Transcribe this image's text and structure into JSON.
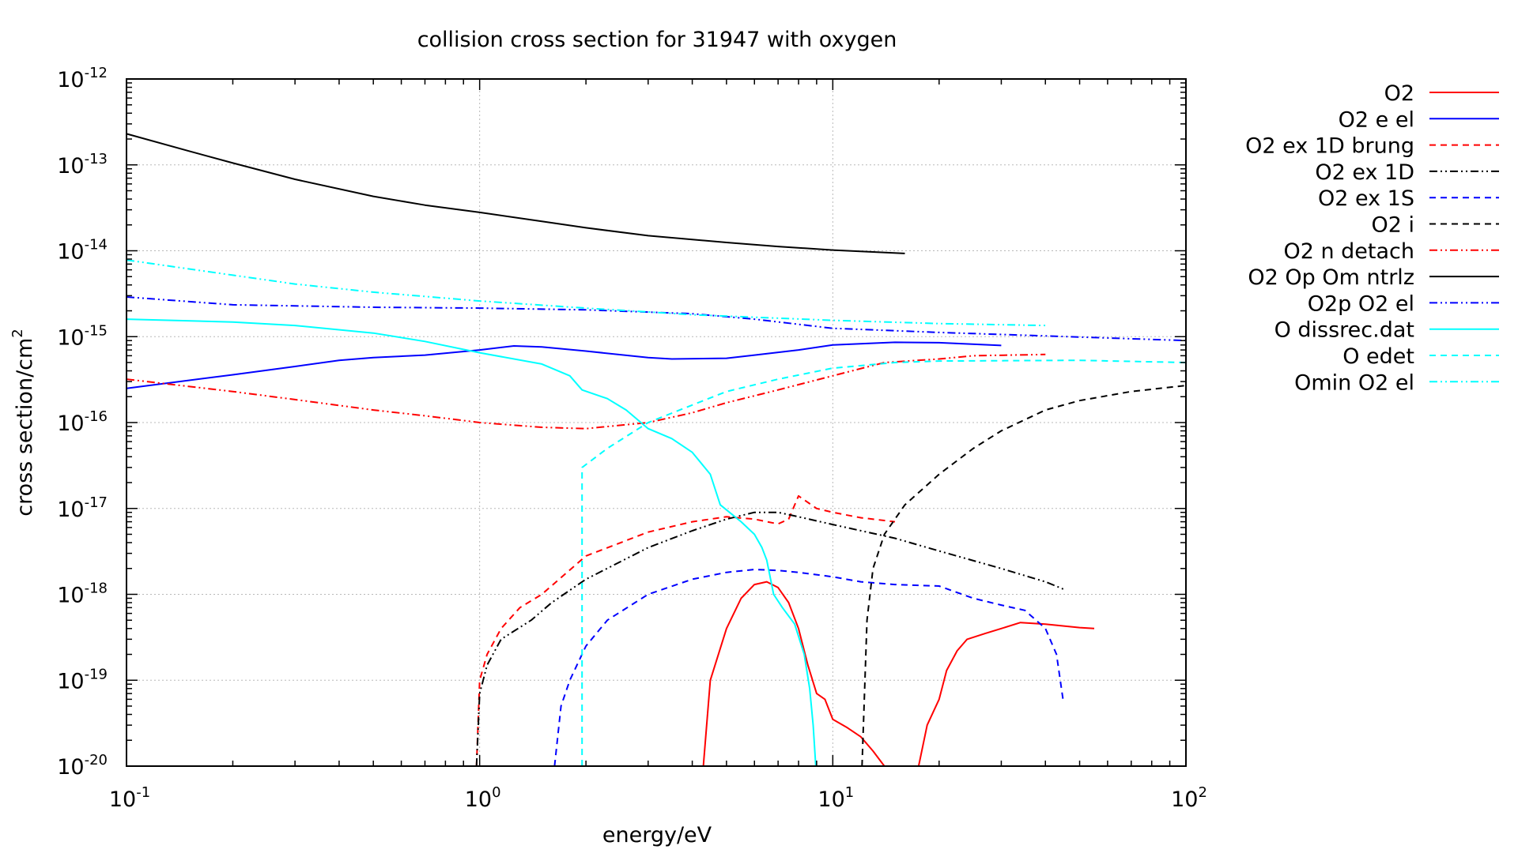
{
  "chart_data": {
    "type": "line",
    "title": "collision cross section for 31947 with oxygen",
    "xlabel": "energy/eV",
    "ylabel_base": "cross section/cm",
    "ylabel_exp": "2",
    "xscale": "log",
    "yscale": "log",
    "xlim": [
      0.1,
      100
    ],
    "ylim": [
      1e-20,
      1e-12
    ],
    "grid": true,
    "legend_position": "outside-right",
    "x_ticks": [
      {
        "base": "10",
        "exp": "-1",
        "value": 0.1
      },
      {
        "base": "10",
        "exp": "0",
        "value": 1
      },
      {
        "base": "10",
        "exp": "1",
        "value": 10
      },
      {
        "base": "10",
        "exp": "2",
        "value": 100
      }
    ],
    "y_ticks": [
      {
        "base": "10",
        "exp": "-12",
        "value": 1e-12
      },
      {
        "base": "10",
        "exp": "-13",
        "value": 1e-13
      },
      {
        "base": "10",
        "exp": "-14",
        "value": 1e-14
      },
      {
        "base": "10",
        "exp": "-15",
        "value": 1e-15
      },
      {
        "base": "10",
        "exp": "-16",
        "value": 1e-16
      },
      {
        "base": "10",
        "exp": "-17",
        "value": 1e-17
      },
      {
        "base": "10",
        "exp": "-18",
        "value": 1e-18
      },
      {
        "base": "10",
        "exp": "-19",
        "value": 1e-19
      },
      {
        "base": "10",
        "exp": "-20",
        "value": 1e-20
      }
    ],
    "series": [
      {
        "name": "O2",
        "color": "#ff0000",
        "dash": "solid",
        "segments": [
          [
            [
              4.3,
              1e-20
            ],
            [
              4.5,
              1e-19
            ],
            [
              5.0,
              4e-19
            ],
            [
              5.5,
              9e-19
            ],
            [
              6.0,
              1.3e-18
            ],
            [
              6.5,
              1.4e-18
            ],
            [
              7.0,
              1.2e-18
            ],
            [
              7.5,
              8e-19
            ],
            [
              8.0,
              4e-19
            ],
            [
              8.5,
              1.5e-19
            ],
            [
              9.0,
              7e-20
            ],
            [
              9.5,
              6e-20
            ],
            [
              10.0,
              3.5e-20
            ],
            [
              11.0,
              2.8e-20
            ],
            [
              12.0,
              2.2e-20
            ],
            [
              13.0,
              1.5e-20
            ],
            [
              14.0,
              1e-20
            ]
          ],
          [
            [
              17.5,
              1e-20
            ],
            [
              18.5,
              3e-20
            ],
            [
              20.0,
              6e-20
            ],
            [
              21.0,
              1.3e-19
            ],
            [
              22.5,
              2.2e-19
            ],
            [
              24.0,
              3e-19
            ],
            [
              27.0,
              3.5e-19
            ],
            [
              30.0,
              4e-19
            ],
            [
              34.0,
              4.7e-19
            ],
            [
              40.0,
              4.5e-19
            ],
            [
              50.0,
              4.1e-19
            ],
            [
              55.0,
              4e-19
            ]
          ]
        ]
      },
      {
        "name": "O2 e el",
        "color": "#0000ff",
        "dash": "solid",
        "segments": [
          [
            [
              0.1,
              2.5e-16
            ],
            [
              0.2,
              3.6e-16
            ],
            [
              0.3,
              4.5e-16
            ],
            [
              0.4,
              5.3e-16
            ],
            [
              0.5,
              5.7e-16
            ],
            [
              0.7,
              6.1e-16
            ],
            [
              1.0,
              7e-16
            ],
            [
              1.25,
              7.8e-16
            ],
            [
              1.5,
              7.6e-16
            ],
            [
              2.0,
              6.8e-16
            ],
            [
              3.0,
              5.7e-16
            ],
            [
              3.5,
              5.5e-16
            ],
            [
              5.0,
              5.6e-16
            ],
            [
              6.0,
              6.1e-16
            ],
            [
              8.0,
              7e-16
            ],
            [
              10.0,
              8e-16
            ],
            [
              15.0,
              8.6e-16
            ],
            [
              20.0,
              8.5e-16
            ],
            [
              30.0,
              7.9e-16
            ]
          ]
        ]
      },
      {
        "name": "O2 ex 1D brung",
        "color": "#ff0000",
        "dash": "8,6",
        "segments": [
          [
            [
              0.98,
              1e-20
            ],
            [
              1.0,
              1e-19
            ],
            [
              1.05,
              2e-19
            ],
            [
              1.15,
              4e-19
            ],
            [
              1.3,
              7e-19
            ],
            [
              1.5,
              1e-18
            ],
            [
              2.0,
              2.8e-18
            ],
            [
              3.0,
              5.3e-18
            ],
            [
              4.0,
              7e-18
            ],
            [
              5.0,
              8e-18
            ],
            [
              6.0,
              7.5e-18
            ],
            [
              7.0,
              6.6e-18
            ],
            [
              7.5,
              7.5e-18
            ],
            [
              8.0,
              1.4e-17
            ],
            [
              9.0,
              1e-17
            ],
            [
              10.0,
              9e-18
            ],
            [
              12.0,
              7.8e-18
            ],
            [
              15.0,
              7e-18
            ]
          ]
        ]
      },
      {
        "name": "O2 ex 1D",
        "color": "#000000",
        "dash": "10,4,2,4,2,4",
        "segments": [
          [
            [
              0.98,
              1e-20
            ],
            [
              1.0,
              7e-20
            ],
            [
              1.05,
              1.5e-19
            ],
            [
              1.15,
              3e-19
            ],
            [
              1.4,
              5e-19
            ],
            [
              1.6,
              8e-19
            ],
            [
              2.0,
              1.5e-18
            ],
            [
              3.0,
              3.5e-18
            ],
            [
              4.0,
              5.5e-18
            ],
            [
              5.0,
              7.5e-18
            ],
            [
              6.0,
              9e-18
            ],
            [
              7.0,
              9e-18
            ],
            [
              8.0,
              8e-18
            ],
            [
              10.0,
              6.5e-18
            ],
            [
              15.0,
              4.5e-18
            ],
            [
              20.0,
              3.2e-18
            ],
            [
              30.0,
              2e-18
            ],
            [
              40.0,
              1.4e-18
            ],
            [
              45.0,
              1.15e-18
            ]
          ]
        ]
      },
      {
        "name": "O2 ex 1S",
        "color": "#0000ff",
        "dash": "8,6",
        "segments": [
          [
            [
              1.63,
              1e-20
            ],
            [
              1.7,
              5e-20
            ],
            [
              1.8,
              1e-19
            ],
            [
              2.0,
              2.5e-19
            ],
            [
              2.3,
              5e-19
            ],
            [
              3.0,
              1e-18
            ],
            [
              4.0,
              1.5e-18
            ],
            [
              5.0,
              1.8e-18
            ],
            [
              6.0,
              1.95e-18
            ],
            [
              7.0,
              1.9e-18
            ],
            [
              8.0,
              1.8e-18
            ],
            [
              10.0,
              1.6e-18
            ],
            [
              12.0,
              1.4e-18
            ],
            [
              15.0,
              1.3e-18
            ],
            [
              20.0,
              1.25e-18
            ],
            [
              25.0,
              9e-19
            ],
            [
              30.0,
              7.5e-19
            ],
            [
              35.0,
              6.5e-19
            ],
            [
              40.0,
              4e-19
            ],
            [
              43.0,
              2e-19
            ],
            [
              45.0,
              5.5e-20
            ]
          ]
        ]
      },
      {
        "name": "O2 i",
        "color": "#000000",
        "dash": "8,6",
        "segments": [
          [
            [
              12.1,
              1e-20
            ],
            [
              12.5,
              5e-19
            ],
            [
              13.0,
              2e-18
            ],
            [
              14.0,
              5e-18
            ],
            [
              16.0,
              1.1e-17
            ],
            [
              20.0,
              2.5e-17
            ],
            [
              25.0,
              5e-17
            ],
            [
              30.0,
              8e-17
            ],
            [
              40.0,
              1.4e-16
            ],
            [
              50.0,
              1.8e-16
            ],
            [
              70.0,
              2.3e-16
            ],
            [
              100.0,
              2.7e-16
            ]
          ]
        ]
      },
      {
        "name": "O2 n detach",
        "color": "#ff0000",
        "dash": "10,4,2,4,2,4",
        "segments": [
          [
            [
              0.1,
              3.2e-16
            ],
            [
              0.2,
              2.3e-16
            ],
            [
              0.3,
              1.85e-16
            ],
            [
              0.5,
              1.4e-16
            ],
            [
              0.7,
              1.2e-16
            ],
            [
              1.0,
              1e-16
            ],
            [
              1.5,
              8.8e-17
            ],
            [
              2.0,
              8.5e-17
            ],
            [
              3.0,
              1e-16
            ],
            [
              4.0,
              1.3e-16
            ],
            [
              5.0,
              1.7e-16
            ],
            [
              7.0,
              2.4e-16
            ],
            [
              10.0,
              3.5e-16
            ],
            [
              14.0,
              5e-16
            ],
            [
              20.0,
              5.5e-16
            ],
            [
              25.0,
              6e-16
            ],
            [
              40.0,
              6.2e-16
            ]
          ]
        ]
      },
      {
        "name": "O2 Op Om ntrlz",
        "color": "#000000",
        "dash": "solid",
        "segments": [
          [
            [
              0.1,
              2.3e-13
            ],
            [
              0.15,
              1.45e-13
            ],
            [
              0.2,
              1.05e-13
            ],
            [
              0.3,
              6.8e-14
            ],
            [
              0.5,
              4.3e-14
            ],
            [
              0.7,
              3.4e-14
            ],
            [
              1.0,
              2.8e-14
            ],
            [
              1.5,
              2.2e-14
            ],
            [
              2.0,
              1.85e-14
            ],
            [
              3.0,
              1.5e-14
            ],
            [
              5.0,
              1.25e-14
            ],
            [
              7.0,
              1.12e-14
            ],
            [
              10.0,
              1.02e-14
            ],
            [
              16.0,
              9.3e-15
            ]
          ]
        ]
      },
      {
        "name": "O2p O2 el",
        "color": "#0000ff",
        "dash": "10,4,2,4,2,4",
        "segments": [
          [
            [
              0.1,
              2.9e-15
            ],
            [
              0.2,
              2.35e-15
            ],
            [
              0.5,
              2.2e-15
            ],
            [
              1.0,
              2.15e-15
            ],
            [
              2.0,
              2.05e-15
            ],
            [
              4.0,
              1.85e-15
            ],
            [
              6.0,
              1.6e-15
            ],
            [
              10.0,
              1.25e-15
            ],
            [
              20.0,
              1.12e-15
            ],
            [
              40.0,
              1.02e-15
            ],
            [
              100.0,
              9e-16
            ]
          ]
        ]
      },
      {
        "name": "O dissrec.dat",
        "color": "#00ffff",
        "dash": "solid",
        "segments": [
          [
            [
              0.1,
              1.6e-15
            ],
            [
              0.2,
              1.48e-15
            ],
            [
              0.3,
              1.35e-15
            ],
            [
              0.5,
              1.1e-15
            ],
            [
              0.7,
              8.8e-16
            ],
            [
              1.0,
              6.5e-16
            ],
            [
              1.5,
              4.8e-16
            ],
            [
              1.8,
              3.5e-16
            ],
            [
              1.95,
              2.4e-16
            ],
            [
              2.3,
              1.9e-16
            ],
            [
              2.6,
              1.4e-16
            ],
            [
              3.0,
              8.5e-17
            ],
            [
              3.5,
              6.5e-17
            ],
            [
              4.0,
              4.5e-17
            ],
            [
              4.5,
              2.5e-17
            ],
            [
              4.8,
              1.1e-17
            ],
            [
              5.5,
              7e-18
            ],
            [
              6.0,
              5e-18
            ],
            [
              6.3,
              3.5e-18
            ],
            [
              6.5,
              2.5e-18
            ],
            [
              6.8,
              1e-18
            ],
            [
              7.2,
              7e-19
            ],
            [
              7.8,
              4.5e-19
            ],
            [
              8.3,
              2e-19
            ],
            [
              8.6,
              8e-20
            ],
            [
              8.8,
              3e-20
            ],
            [
              8.95,
              1e-20
            ]
          ]
        ]
      },
      {
        "name": "O edet",
        "color": "#00ffff",
        "dash": "8,6",
        "segments": [
          [
            [
              1.95,
              1e-20
            ],
            [
              1.95,
              3e-17
            ],
            [
              2.3,
              5e-17
            ],
            [
              3.0,
              1e-16
            ],
            [
              4.0,
              1.6e-16
            ],
            [
              5.0,
              2.3e-16
            ],
            [
              7.0,
              3.2e-16
            ],
            [
              10.0,
              4.3e-16
            ],
            [
              15.0,
              5e-16
            ],
            [
              20.0,
              5.2e-16
            ],
            [
              50.0,
              5.3e-16
            ],
            [
              100.0,
              5e-16
            ]
          ]
        ]
      },
      {
        "name": "Omin O2 el",
        "color": "#00ffff",
        "dash": "10,4,2,4,2,4",
        "segments": [
          [
            [
              0.1,
              7.8e-15
            ],
            [
              0.2,
              5.2e-15
            ],
            [
              0.3,
              4.1e-15
            ],
            [
              0.5,
              3.3e-15
            ],
            [
              1.0,
              2.6e-15
            ],
            [
              2.0,
              2.15e-15
            ],
            [
              4.0,
              1.8e-15
            ],
            [
              10.0,
              1.55e-15
            ],
            [
              20.0,
              1.42e-15
            ],
            [
              40.0,
              1.35e-15
            ]
          ]
        ]
      }
    ]
  }
}
